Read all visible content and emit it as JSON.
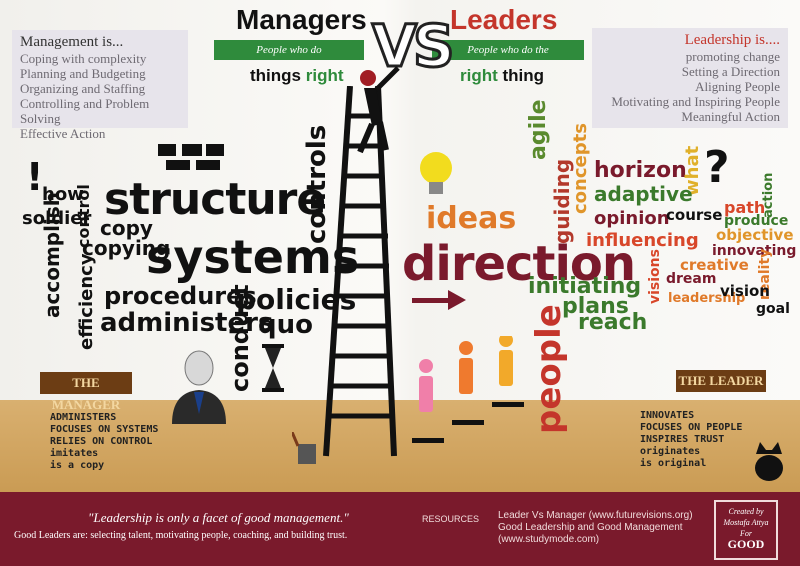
{
  "header": {
    "managers": "Managers",
    "leaders": "Leaders",
    "vs": "VS",
    "managers_ribbon": "People who do",
    "leaders_ribbon": "People who do the",
    "managers_tag_1": "things",
    "managers_tag_2": "right",
    "leaders_tag_1": "right",
    "leaders_tag_2": "thing"
  },
  "management": {
    "heading": "Management is...",
    "items": [
      "Coping with complexity",
      "Planning and Budgeting",
      "Organizing and Staffing",
      "Controlling and Problem Solving",
      "Effective Action"
    ]
  },
  "leadership": {
    "heading": "Leadership is....",
    "items": [
      "promoting change",
      "Setting a Direction",
      "Aligning People",
      "Motivating and Inspiring People",
      "Meaningful Action"
    ]
  },
  "manager_words": {
    "exclaim": "!",
    "how": "how",
    "soldier": "soldier",
    "control": "control",
    "structure": "structure",
    "copy": "copy",
    "copying": "copying",
    "controls": "controls",
    "accomplish": "accomplish",
    "systems": "systems",
    "procedures": "procedures",
    "policies": "policies",
    "efficiency": "efficiency",
    "administers": "administers",
    "quo": "quo",
    "conduct": "conduct"
  },
  "leader_words": {
    "agile": "agile",
    "guiding": "guiding",
    "concepts": "concepts",
    "horizon": "horizon",
    "what": "what",
    "question": "?",
    "adaptive": "adaptive",
    "ideas": "ideas",
    "path": "path",
    "produce": "produce",
    "action": "action",
    "opinion": "opinion",
    "course": "course",
    "objective": "objective",
    "influencing": "influencing",
    "innovating": "innovating",
    "direction": "direction",
    "creative": "creative",
    "dream": "dream",
    "reality": "reality",
    "visions": "visions",
    "leadership": "leadership",
    "vision": "vision",
    "initiating": "initiating",
    "plans": "plans",
    "reach": "reach",
    "goal": "goal",
    "people": "people"
  },
  "manager_sign": "THE MANAGER",
  "leader_sign": "THE LEADER",
  "manager_traits": [
    "ADMINISTERS",
    "FOCUSES ON SYSTEMS",
    "RELIES ON CONTROL",
    "imitates",
    "is a copy"
  ],
  "leader_traits": [
    "INNOVATES",
    "FOCUSES ON PEOPLE",
    "INSPIRES TRUST",
    "originates",
    "is original"
  ],
  "footer": {
    "quote": "\"Leadership is only a facet of good management.\"",
    "good_leaders": "Good Leaders are: selecting talent, motivating people, coaching, and building trust.",
    "resources_label": "RESOURCES",
    "res1": "Leader Vs Manager (www.futurevisions.org)",
    "res2": "Good Leadership and Good Management",
    "res3": "(www.studymode.com)",
    "badge1": "Created by",
    "badge2": "Mostafa Attya",
    "badge3": "For",
    "badge4": "GOOD"
  },
  "colors": {
    "footer": "#7a1a2c",
    "ribbon": "#2f8b3c",
    "leaders_title": "#c4352b"
  }
}
